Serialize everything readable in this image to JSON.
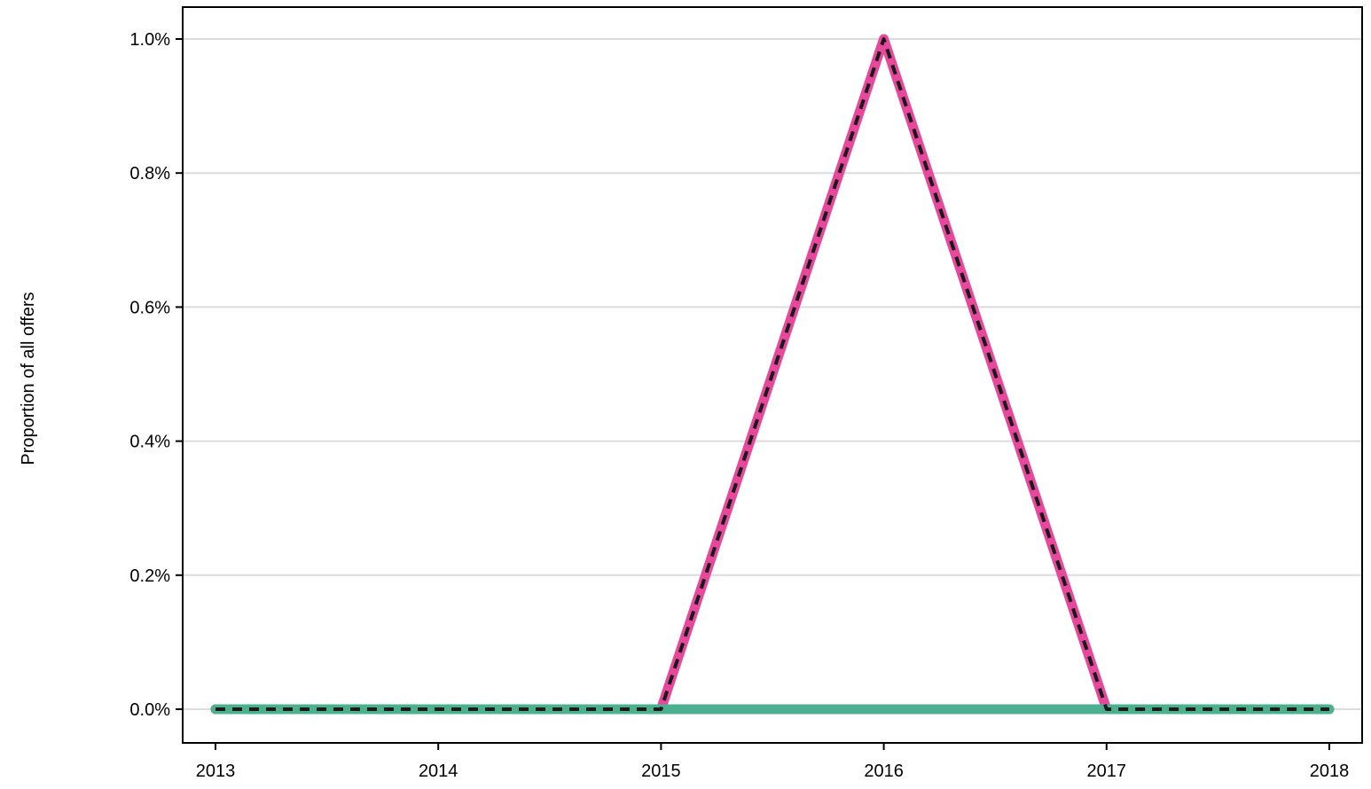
{
  "chart_data": {
    "type": "line",
    "title": "",
    "xlabel": "",
    "ylabel": "Proportion of all offers",
    "x": [
      2013,
      2014,
      2015,
      2016,
      2017,
      2018
    ],
    "x_tick_labels": [
      "2013",
      "2014",
      "2015",
      "2016",
      "2017",
      "2018"
    ],
    "ylim": [
      0,
      1.0
    ],
    "y_ticks": [
      0.0,
      0.2,
      0.4,
      0.6,
      0.8,
      1.0
    ],
    "y_tick_labels": [
      "0.0%",
      "0.2%",
      "0.4%",
      "0.6%",
      "0.8%",
      "1.0%"
    ],
    "grid": "horizontal",
    "legend": "none",
    "series": [
      {
        "color": "#e8489b",
        "style": "solid-thick",
        "values": [
          0.0,
          0.0,
          0.0,
          1.0,
          0.0,
          0.0
        ]
      },
      {
        "color": "#4bb08f",
        "style": "solid-thick",
        "values": [
          0.0,
          0.0,
          0.0,
          0.0,
          0.0,
          0.0
        ]
      },
      {
        "color": "#1a1a1a",
        "style": "dashed",
        "values": [
          0.0,
          0.0,
          0.0,
          1.0,
          0.0,
          0.0
        ]
      }
    ]
  }
}
